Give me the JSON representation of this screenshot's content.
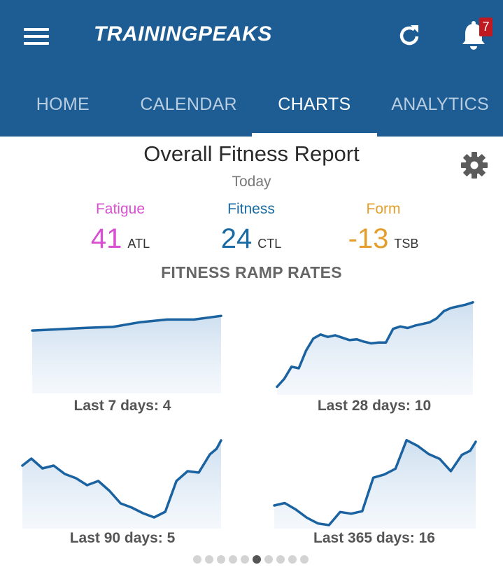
{
  "header": {
    "logo": "TRAININGPEAKS",
    "notifications_count": "7",
    "icons": [
      "menu-icon",
      "refresh-icon",
      "bell-icon"
    ],
    "colors": {
      "bar": "#1d5d94",
      "badge": "#c0191f"
    }
  },
  "tabs": [
    {
      "label": "HOME",
      "active": false
    },
    {
      "label": "CALENDAR",
      "active": false
    },
    {
      "label": "CHARTS",
      "active": true
    },
    {
      "label": "ANALYTICS",
      "active": false
    }
  ],
  "report": {
    "title": "Overall Fitness Report",
    "date": "Today",
    "settings_icon": "gear-icon"
  },
  "metrics": {
    "fatigue": {
      "label": "Fatigue",
      "value": "41",
      "abbr": "ATL",
      "color": "#d94fd1"
    },
    "fitness": {
      "label": "Fitness",
      "value": "24",
      "abbr": "CTL",
      "color": "#1a6aa3"
    },
    "form": {
      "label": "Form",
      "value": "-13",
      "abbr": "TSB",
      "color": "#e49e2b"
    }
  },
  "ramp": {
    "heading": "FITNESS RAMP RATES",
    "charts": [
      {
        "caption": "Last 7 days: 4"
      },
      {
        "caption": "Last 28 days: 10"
      },
      {
        "caption": "Last 90 days: 5"
      },
      {
        "caption": "Last 365 days: 16"
      }
    ]
  },
  "chart_data": [
    {
      "type": "area",
      "title": "Last 7 days: 4",
      "x": [
        1,
        2,
        3,
        4,
        5,
        6,
        7,
        8
      ],
      "values": [
        19.0,
        19.4,
        19.8,
        20.1,
        21.5,
        22.3,
        22.3,
        23.4
      ],
      "ylim": [
        0,
        30
      ]
    },
    {
      "type": "area",
      "title": "Last 28 days: 10",
      "x": [
        1,
        2,
        3,
        4,
        5,
        6,
        7,
        8,
        9,
        10,
        11,
        12,
        13,
        14,
        15,
        16,
        17,
        18,
        19,
        20,
        21,
        22,
        23,
        24,
        25,
        26,
        27,
        28
      ],
      "values": [
        14,
        15,
        16.5,
        16.3,
        18.5,
        20,
        20.5,
        20.2,
        20.4,
        20.1,
        19.8,
        19.9,
        19.6,
        19.4,
        19.5,
        19.5,
        21.2,
        21.5,
        21.3,
        21.6,
        21.8,
        22,
        22.5,
        23.4,
        23.8,
        24,
        24.2,
        24.5
      ],
      "ylim": [
        13,
        25
      ]
    },
    {
      "type": "area",
      "title": "Last 90 days: 5",
      "x": [
        1,
        5,
        10,
        15,
        20,
        25,
        30,
        35,
        40,
        45,
        50,
        55,
        60,
        65,
        70,
        75,
        80,
        85,
        88,
        90
      ],
      "values": [
        22.6,
        23.1,
        22.4,
        22.6,
        22.0,
        21.7,
        21.2,
        21.5,
        20.8,
        19.9,
        19.6,
        19.2,
        18.9,
        19.3,
        21.5,
        22.2,
        22.1,
        23.4,
        23.8,
        24.4
      ],
      "ylim": [
        18,
        25
      ]
    },
    {
      "type": "area",
      "title": "Last 365 days: 16",
      "x": [
        1,
        20,
        40,
        60,
        80,
        100,
        120,
        140,
        160,
        180,
        200,
        220,
        240,
        260,
        280,
        300,
        320,
        340,
        355,
        365
      ],
      "values": [
        11,
        11.3,
        10.5,
        9.5,
        8.8,
        8.6,
        10.2,
        10,
        10.3,
        14.4,
        14.8,
        15.5,
        19,
        18.3,
        17.3,
        16.7,
        15.2,
        17.2,
        17.7,
        18.8
      ],
      "ylim": [
        8,
        20
      ]
    }
  ],
  "pager": {
    "count": 10,
    "active_index": 5
  }
}
